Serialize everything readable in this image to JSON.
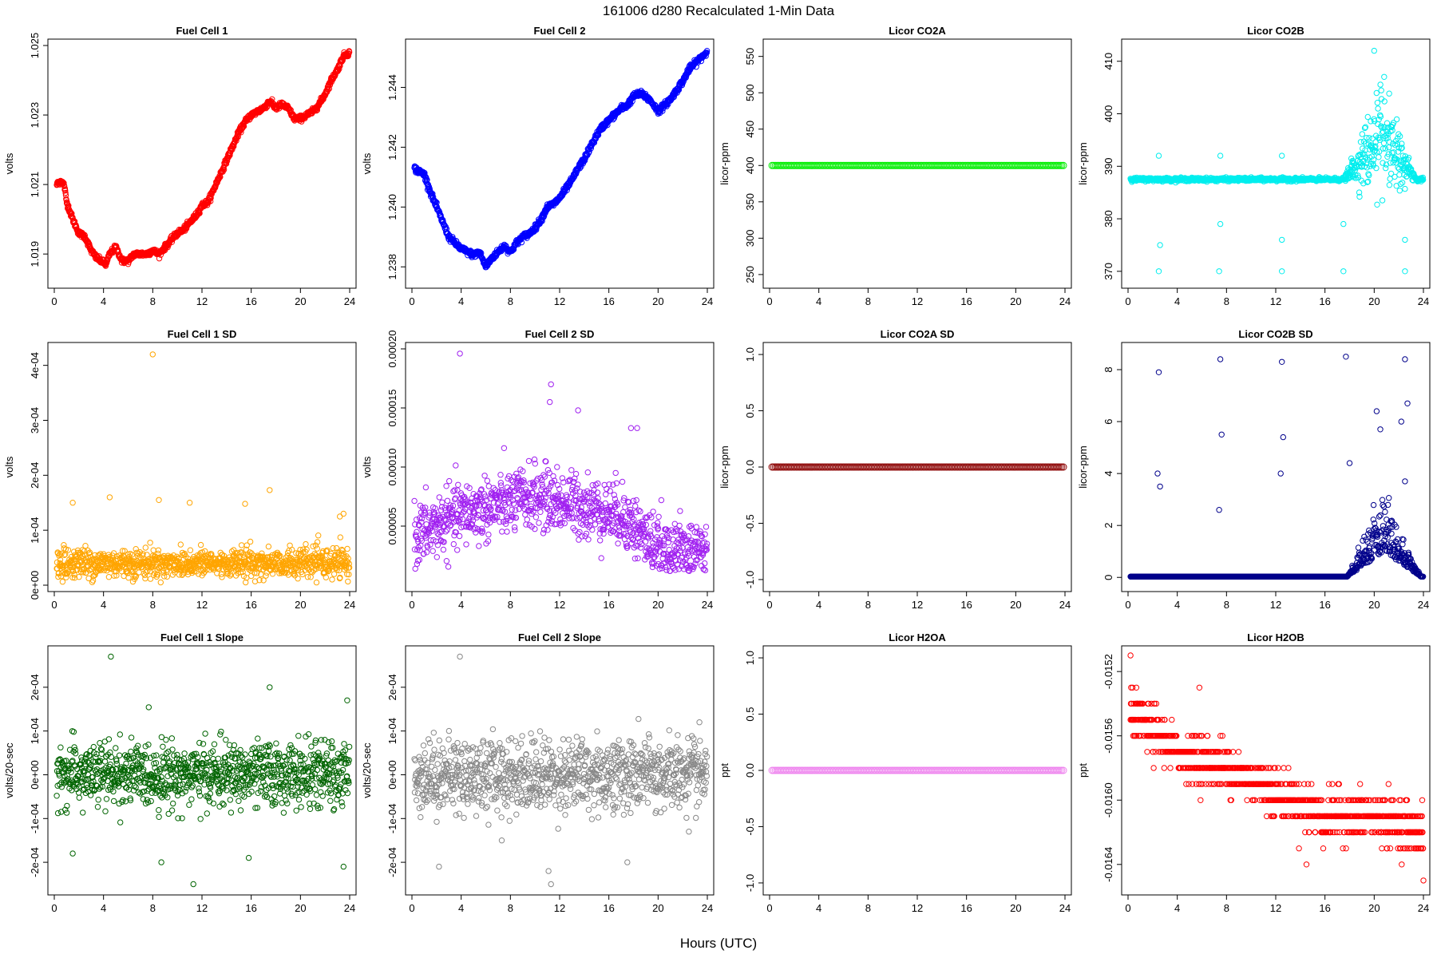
{
  "figure": {
    "title": "161006   d280   Recalculated 1-Min Data",
    "xlabel": "Hours (UTC)"
  },
  "chart_data": [
    {
      "type": "scatter",
      "title": "Fuel Cell 1",
      "ylabel": "volts",
      "color": "#ff0000",
      "xlim": [
        0,
        24
      ],
      "ylim": [
        1.0182,
        1.025
      ],
      "xticks": [
        0,
        4,
        8,
        12,
        16,
        20,
        24
      ],
      "yticks": [
        1.019,
        1.021,
        1.023,
        1.025
      ],
      "yticklabels": [
        "1.019",
        "1.021",
        "1.023",
        "1.025"
      ],
      "series": {
        "kind": "curve",
        "x": [
          0.2,
          0.5,
          0.8,
          1.0,
          1.5,
          2.0,
          2.5,
          3.0,
          3.4,
          3.8,
          4.2,
          4.5,
          5.0,
          5.5,
          6.0,
          6.5,
          7.0,
          7.5,
          8.0,
          8.5,
          9.0,
          9.5,
          10,
          10.5,
          11,
          11.5,
          12,
          12.5,
          13,
          13.5,
          14,
          14.5,
          15,
          15.5,
          16,
          16.5,
          17,
          17.5,
          18,
          18.5,
          19,
          19.5,
          20,
          20.5,
          21,
          21.5,
          22,
          22.5,
          23,
          23.5,
          24
        ],
        "y": [
          1.021,
          1.0211,
          1.021,
          1.0205,
          1.02,
          1.0196,
          1.0195,
          1.0191,
          1.0189,
          1.0188,
          1.0187,
          1.019,
          1.0192,
          1.0188,
          1.0188,
          1.019,
          1.019,
          1.019,
          1.0191,
          1.019,
          1.0192,
          1.0194,
          1.0196,
          1.0197,
          1.0199,
          1.0201,
          1.0204,
          1.0205,
          1.0209,
          1.0213,
          1.0217,
          1.0221,
          1.0225,
          1.0228,
          1.023,
          1.0231,
          1.0232,
          1.0234,
          1.0232,
          1.0233,
          1.0232,
          1.0229,
          1.0229,
          1.023,
          1.0231,
          1.0233,
          1.0236,
          1.024,
          1.0243,
          1.0247,
          1.0248
        ],
        "jitter": 8e-05
      }
    },
    {
      "type": "scatter",
      "title": "Fuel Cell 2",
      "ylabel": "volts",
      "color": "#0000ff",
      "xlim": [
        0,
        24
      ],
      "ylim": [
        1.2375,
        1.2454
      ],
      "xticks": [
        0,
        4,
        8,
        12,
        16,
        20,
        24
      ],
      "yticks": [
        1.238,
        1.24,
        1.242,
        1.244
      ],
      "yticklabels": [
        "1.238",
        "1.240",
        "1.242",
        "1.244"
      ],
      "series": {
        "kind": "curve",
        "x": [
          0.2,
          0.5,
          1.0,
          1.5,
          2.0,
          2.5,
          3.0,
          3.5,
          4.0,
          4.5,
          5.0,
          5.5,
          6.0,
          6.5,
          7.0,
          7.5,
          8.0,
          8.5,
          9.0,
          9.5,
          10,
          10.5,
          11,
          11.5,
          12,
          12.5,
          13,
          13.5,
          14,
          14.5,
          15,
          15.5,
          16,
          16.5,
          17,
          17.5,
          18,
          18.5,
          19,
          19.5,
          20,
          20.5,
          21,
          21.5,
          22,
          22.5,
          23,
          23.5,
          24
        ],
        "y": [
          1.2413,
          1.2412,
          1.2411,
          1.2405,
          1.24,
          1.2395,
          1.239,
          1.2388,
          1.2386,
          1.2385,
          1.2384,
          1.2385,
          1.238,
          1.2383,
          1.2385,
          1.2387,
          1.2385,
          1.2388,
          1.239,
          1.2391,
          1.2393,
          1.2396,
          1.24,
          1.2401,
          1.2403,
          1.2406,
          1.2409,
          1.2413,
          1.2416,
          1.242,
          1.2424,
          1.2427,
          1.2429,
          1.2431,
          1.2433,
          1.2434,
          1.2437,
          1.2438,
          1.2437,
          1.2435,
          1.2432,
          1.2434,
          1.2436,
          1.2439,
          1.2442,
          1.2446,
          1.2448,
          1.245,
          1.2452
        ],
        "jitter": 0.0001
      }
    },
    {
      "type": "scatter",
      "title": "Licor CO2A",
      "ylabel": "licor-ppm",
      "color": "#00ee00",
      "xlim": [
        0,
        24
      ],
      "ylim": [
        240,
        565
      ],
      "xticks": [
        0,
        4,
        8,
        12,
        16,
        20,
        24
      ],
      "yticks": [
        250,
        300,
        350,
        400,
        450,
        500,
        550
      ],
      "yticklabels": [
        "250",
        "300",
        "350",
        "400",
        "450",
        "500",
        "550"
      ],
      "series": {
        "kind": "constant",
        "value": 400
      }
    },
    {
      "type": "scatter",
      "title": "Licor CO2B",
      "ylabel": "licor-ppm",
      "color": "#00eeee",
      "xlim": [
        0,
        24
      ],
      "ylim": [
        368,
        413
      ],
      "xticks": [
        0,
        4,
        8,
        12,
        16,
        20,
        24
      ],
      "yticks": [
        370,
        380,
        390,
        400,
        410
      ],
      "yticklabels": [
        "370",
        "380",
        "390",
        "400",
        "410"
      ],
      "series": {
        "kind": "baseline_burst",
        "base": 387.5,
        "burst": [
          17.5,
          23.5
        ],
        "burst_mid": 395,
        "burst_spread": 5,
        "outliers": [
          [
            2.5,
            392
          ],
          [
            2.5,
            370
          ],
          [
            2.6,
            375
          ],
          [
            7.5,
            392
          ],
          [
            7.5,
            379
          ],
          [
            7.4,
            370
          ],
          [
            12.5,
            392
          ],
          [
            12.5,
            370
          ],
          [
            12.5,
            376
          ],
          [
            17.5,
            370
          ],
          [
            17.5,
            379
          ],
          [
            20,
            412
          ],
          [
            22.5,
            370
          ],
          [
            22.5,
            376
          ]
        ]
      }
    },
    {
      "type": "scatter",
      "title": "Fuel Cell 1 SD",
      "ylabel": "volts",
      "color": "#ffa500",
      "xlim": [
        0,
        24
      ],
      "ylim": [
        0,
        0.00043
      ],
      "xticks": [
        0,
        4,
        8,
        12,
        16,
        20,
        24
      ],
      "yticks": [
        0,
        0.0001,
        0.0002,
        0.0003,
        0.0004
      ],
      "yticklabels": [
        "0e+00",
        "1e-04",
        "2e-04",
        "3e-04",
        "4e-04"
      ],
      "series": {
        "kind": "noise",
        "center": 4e-05,
        "spread": 2.2e-05,
        "outliers": [
          [
            8,
            0.00042
          ],
          [
            4.5,
            0.00016
          ],
          [
            8.5,
            0.000155
          ],
          [
            11,
            0.00015
          ],
          [
            15.5,
            0.000148
          ],
          [
            17.5,
            0.000173
          ],
          [
            23.5,
            0.00013
          ],
          [
            1.5,
            0.00015
          ],
          [
            23.2,
            0.000125
          ]
        ]
      }
    },
    {
      "type": "scatter",
      "title": "Fuel Cell 2 SD",
      "ylabel": "volts",
      "color": "#a020f0",
      "xlim": [
        0,
        24
      ],
      "ylim": [
        0.0,
        0.0002
      ],
      "xticks": [
        0,
        4,
        8,
        12,
        16,
        20,
        24
      ],
      "yticks": [
        5e-05,
        0.0001,
        0.00015,
        0.0002
      ],
      "yticklabels": [
        "0.00005",
        "0.00010",
        "0.00015",
        "0.00020"
      ],
      "series": {
        "kind": "noise_trend",
        "points": [
          [
            0,
            4e-05
          ],
          [
            4,
            6e-05
          ],
          [
            10,
            7.5e-05
          ],
          [
            17,
            6e-05
          ],
          [
            20,
            3e-05
          ],
          [
            24,
            3e-05
          ]
        ],
        "spread": 2.2e-05,
        "outliers": [
          [
            3.9,
            0.000196
          ],
          [
            11.3,
            0.00017
          ],
          [
            11.2,
            0.000155
          ],
          [
            13.5,
            0.000148
          ],
          [
            17.8,
            0.000133
          ],
          [
            18.3,
            0.000133
          ]
        ]
      }
    },
    {
      "type": "scatter",
      "title": "Licor CO2A SD",
      "ylabel": "licor-ppm",
      "color": "#8b0000",
      "xlim": [
        0,
        24
      ],
      "ylim": [
        -1.05,
        1.05
      ],
      "xticks": [
        0,
        4,
        8,
        12,
        16,
        20,
        24
      ],
      "yticks": [
        -1,
        -0.5,
        0,
        0.5,
        1
      ],
      "yticklabels": [
        "-1.0",
        "-0.5",
        "0.0",
        "0.5",
        "1.0"
      ],
      "series": {
        "kind": "constant",
        "value": 0
      }
    },
    {
      "type": "scatter",
      "title": "Licor CO2B SD",
      "ylabel": "licor-ppm",
      "color": "#00008b",
      "xlim": [
        0,
        24
      ],
      "ylim": [
        -0.3,
        8.8
      ],
      "xticks": [
        0,
        4,
        8,
        12,
        16,
        20,
        24
      ],
      "yticks": [
        0,
        2,
        4,
        6,
        8
      ],
      "yticklabels": [
        "0",
        "2",
        "4",
        "6",
        "8"
      ],
      "series": {
        "kind": "baseline_burst",
        "base": 0.03,
        "burst": [
          17.8,
          23.8
        ],
        "burst_mid": 1.0,
        "burst_spread": 0.9,
        "outliers": [
          [
            2.5,
            7.9
          ],
          [
            2.4,
            4.0
          ],
          [
            2.6,
            3.5
          ],
          [
            7.5,
            8.4
          ],
          [
            7.6,
            5.5
          ],
          [
            7.4,
            2.6
          ],
          [
            12.5,
            8.3
          ],
          [
            12.6,
            5.4
          ],
          [
            12.4,
            4.0
          ],
          [
            17.7,
            8.5
          ],
          [
            18,
            4.4
          ],
          [
            20.5,
            5.7
          ],
          [
            22.5,
            8.4
          ],
          [
            22.7,
            6.7
          ],
          [
            22.2,
            6.0
          ],
          [
            20.2,
            6.4
          ],
          [
            22.5,
            3.7
          ]
        ]
      }
    },
    {
      "type": "scatter",
      "title": "Fuel Cell 1 Slope",
      "ylabel": "volts/20-sec",
      "color": "#006400",
      "xlim": [
        0,
        24
      ],
      "ylim": [
        -0.00026,
        0.00028
      ],
      "xticks": [
        0,
        4,
        8,
        12,
        16,
        20,
        24
      ],
      "yticks": [
        -0.0002,
        -0.0001,
        0,
        0.0001,
        0.0002
      ],
      "yticklabels": [
        "-2e-04",
        "-1e-04",
        "0e+00",
        "1e-04",
        "2e-04"
      ],
      "series": {
        "kind": "noise",
        "center": 0.0,
        "spread": 6e-05,
        "outliers": [
          [
            4.6,
            0.00027
          ],
          [
            17.5,
            0.0002
          ],
          [
            23.8,
            0.00017
          ],
          [
            11.3,
            -0.00025
          ],
          [
            23.5,
            -0.00021
          ],
          [
            1.5,
            -0.00018
          ],
          [
            8.7,
            -0.0002
          ],
          [
            15.8,
            -0.00019
          ]
        ]
      }
    },
    {
      "type": "scatter",
      "title": "Fuel Cell 2 Slope",
      "ylabel": "volts/20-sec",
      "color": "#888888",
      "xlim": [
        0,
        24
      ],
      "ylim": [
        -0.00026,
        0.00028
      ],
      "xticks": [
        0,
        4,
        8,
        12,
        16,
        20,
        24
      ],
      "yticks": [
        -0.0002,
        -0.0001,
        0,
        0.0001,
        0.0002
      ],
      "yticklabels": [
        "-2e-04",
        "-1e-04",
        "0e+00",
        "1e-04",
        "2e-04"
      ],
      "series": {
        "kind": "noise",
        "center": 0.0,
        "spread": 7e-05,
        "outliers": [
          [
            3.9,
            0.00027
          ],
          [
            11.3,
            -0.00025
          ],
          [
            11.1,
            -0.00022
          ],
          [
            2.2,
            -0.00021
          ],
          [
            17.5,
            -0.0002
          ],
          [
            22.5,
            -0.00013
          ],
          [
            7.3,
            -0.00015
          ]
        ]
      }
    },
    {
      "type": "scatter",
      "title": "Licor H2OA",
      "ylabel": "ppt",
      "color": "#ee82ee",
      "xlim": [
        0,
        24
      ],
      "ylim": [
        -1.05,
        1.05
      ],
      "xticks": [
        0,
        4,
        8,
        12,
        16,
        20,
        24
      ],
      "yticks": [
        -1,
        -0.5,
        0,
        0.5,
        1
      ],
      "yticklabels": [
        "-1.0",
        "-0.5",
        "0.0",
        "0.5",
        "1.0"
      ],
      "series": {
        "kind": "constant",
        "value": 0
      }
    },
    {
      "type": "scatter",
      "title": "Licor H2OB",
      "ylabel": "ppt",
      "color": "#ff0000",
      "xlim": [
        0,
        24
      ],
      "ylim": [
        -0.01655,
        -0.01508
      ],
      "xticks": [
        0,
        4,
        8,
        12,
        16,
        20,
        24
      ],
      "yticks": [
        -0.0164,
        -0.016,
        -0.0156,
        -0.0152
      ],
      "yticklabels": [
        "-0.0164",
        "-0.0160",
        "-0.0156",
        "-0.0152"
      ],
      "series": {
        "kind": "quantized_trend",
        "points": [
          [
            0,
            -0.01545
          ],
          [
            4,
            -0.0157
          ],
          [
            8,
            -0.0158
          ],
          [
            12,
            -0.01595
          ],
          [
            16,
            -0.0161
          ],
          [
            20,
            -0.0161
          ],
          [
            24,
            -0.0162
          ]
        ],
        "step": 0.0001,
        "spread": 0.00012,
        "outliers": [
          [
            0.2,
            -0.0151
          ],
          [
            5.8,
            -0.0153
          ],
          [
            14.5,
            -0.0164
          ],
          [
            24,
            -0.0165
          ]
        ]
      }
    }
  ]
}
